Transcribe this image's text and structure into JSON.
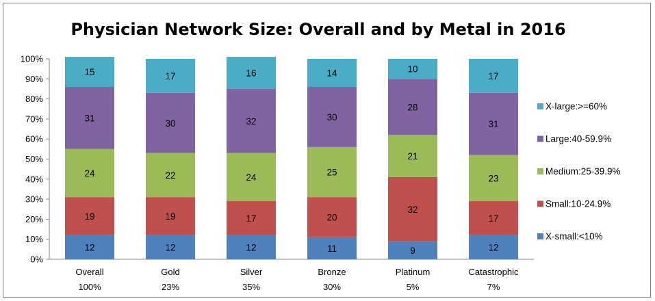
{
  "chart_data": {
    "type": "bar",
    "stacked": true,
    "title": "Physician Network Size: Overall and by Metal in 2016",
    "categories": [
      "Overall",
      "Gold",
      "Silver",
      "Bronze",
      "Platinum",
      "Catastrophic"
    ],
    "category_sublabels": [
      "100%",
      "23%",
      "35%",
      "30%",
      "5%",
      "7%"
    ],
    "yticks": [
      "0%",
      "10%",
      "20%",
      "30%",
      "40%",
      "50%",
      "60%",
      "70%",
      "80%",
      "90%",
      "100%"
    ],
    "ylim": [
      0,
      100
    ],
    "legend_position": "right",
    "series": [
      {
        "name": "X-small:<10%",
        "color": "#4f81bd",
        "values": [
          12,
          12,
          12,
          11,
          9,
          12
        ]
      },
      {
        "name": "Small:10-24.9%",
        "color": "#c0504d",
        "values": [
          19,
          19,
          17,
          20,
          32,
          17
        ]
      },
      {
        "name": "Medium:25-39.9%",
        "color": "#9bbb59",
        "values": [
          24,
          22,
          24,
          25,
          21,
          23
        ]
      },
      {
        "name": "Large:40-59.9%",
        "color": "#8064a2",
        "values": [
          31,
          30,
          32,
          30,
          28,
          31
        ]
      },
      {
        "name": "X-large:>=60%",
        "color": "#4bacc6",
        "values": [
          15,
          17,
          16,
          14,
          10,
          17
        ]
      }
    ]
  }
}
